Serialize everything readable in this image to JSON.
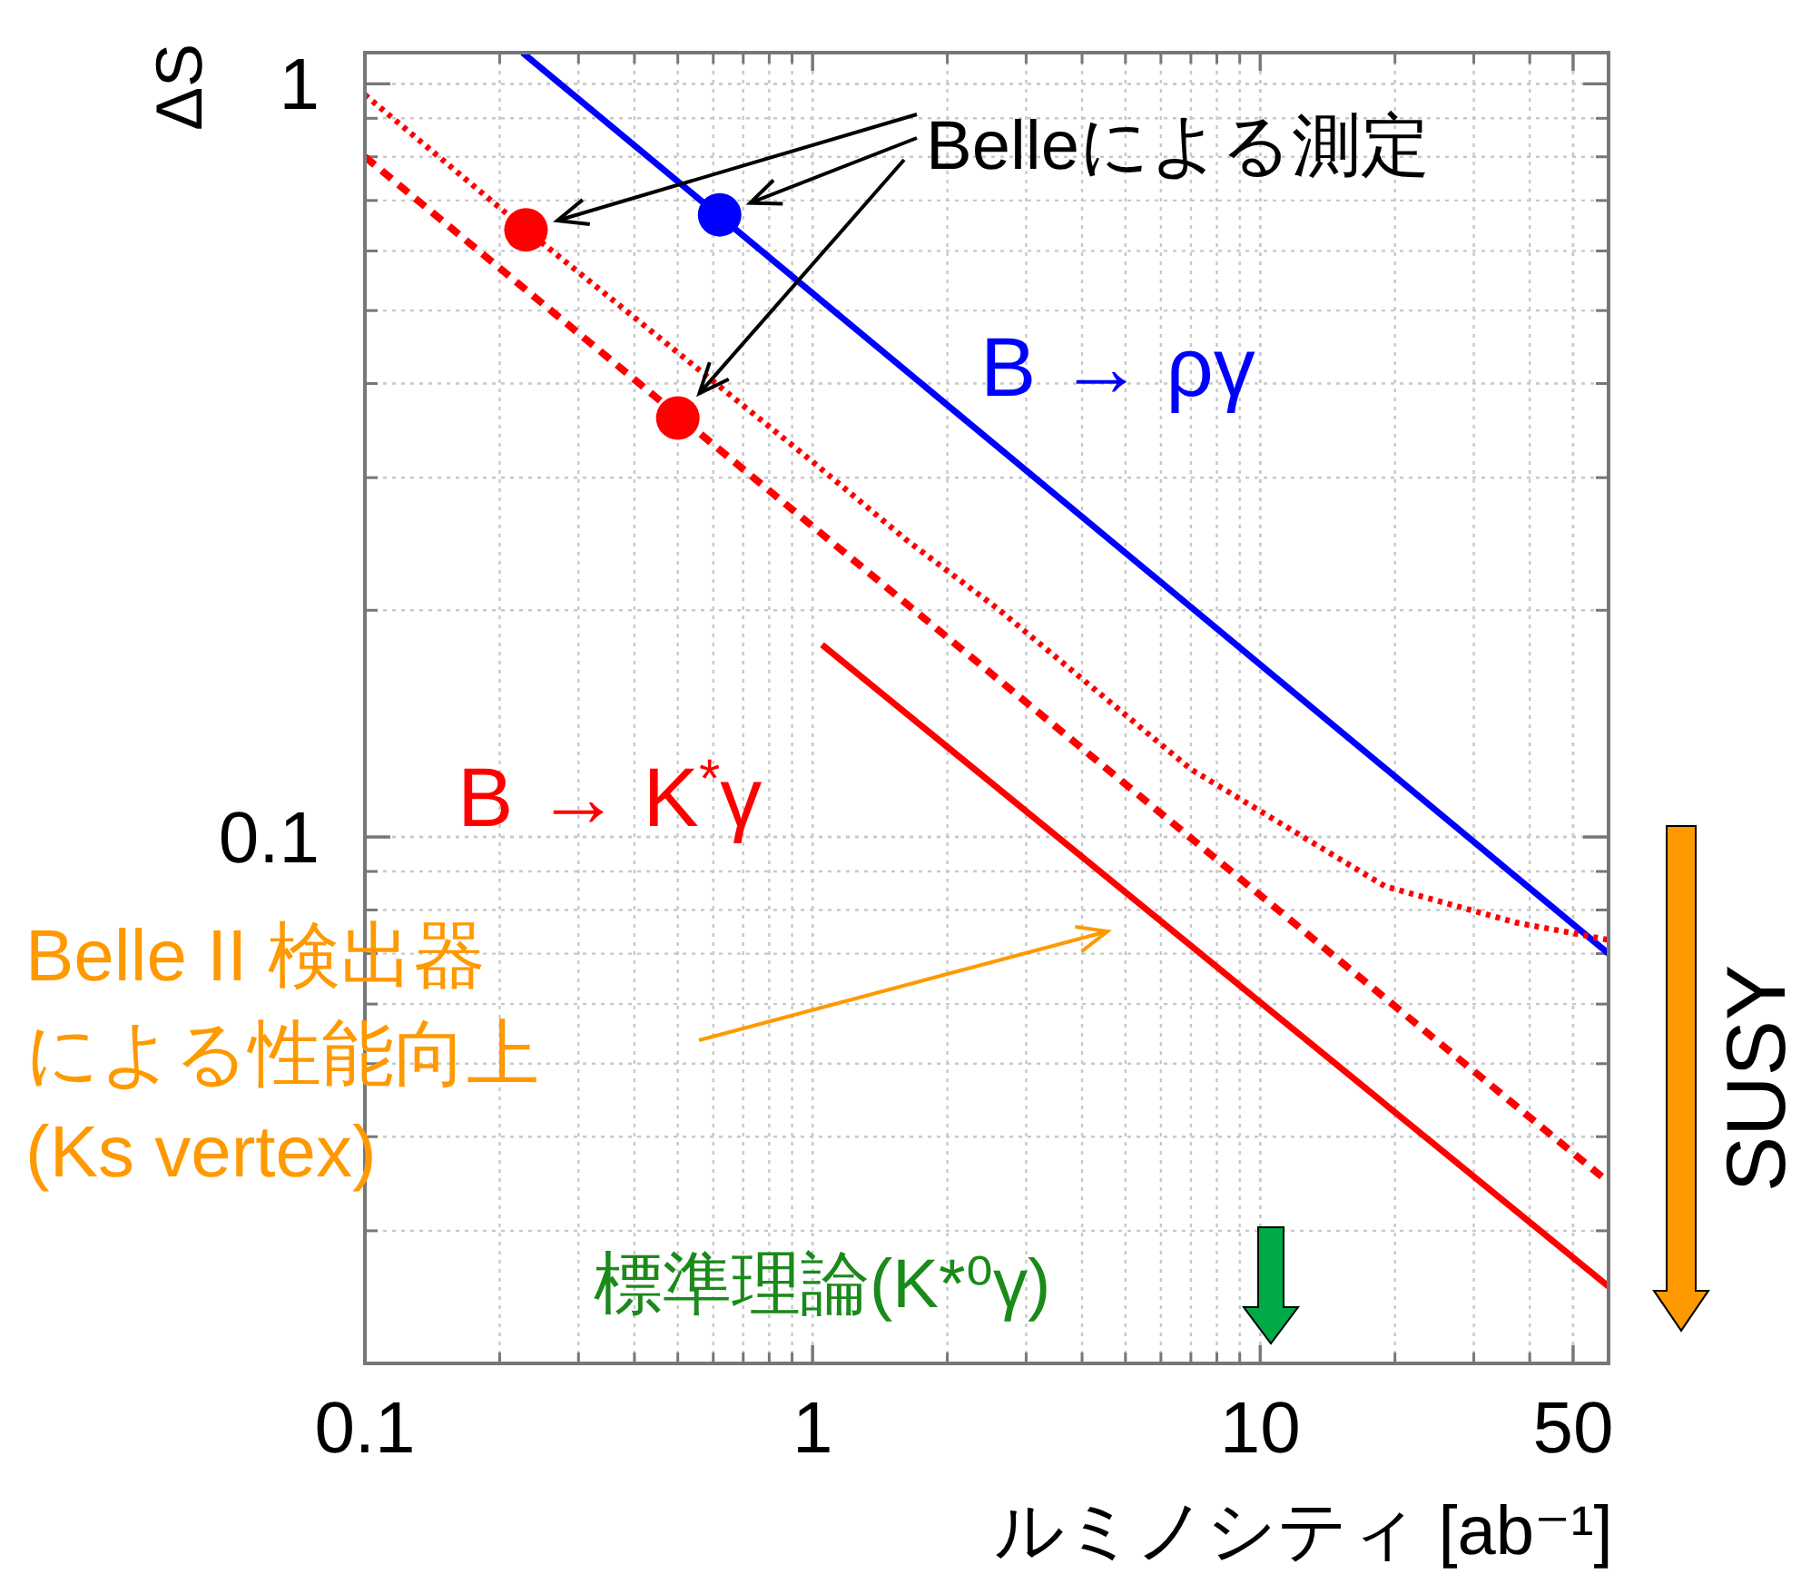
{
  "chart_data": {
    "type": "line",
    "xlabel": "ルミノシティ [ab⁻¹]",
    "ylabel": "ΔS",
    "log": "xy",
    "xlim": [
      0.1,
      60
    ],
    "ylim": [
      0.02,
      1.1
    ],
    "xticks": [
      0.1,
      1,
      10,
      50
    ],
    "yticks": [
      0.1,
      1
    ],
    "grid": true,
    "series": [
      {
        "name": "B → ργ",
        "color": "#0000ff",
        "line_style": "solid",
        "x": [
          0.225,
          60
        ],
        "values": [
          1.1,
          0.07
        ]
      },
      {
        "color": "#ff0000",
        "line_style": "dotted",
        "x": [
          0.1,
          0.229,
          1,
          1.62,
          2.59,
          7.0,
          19.0,
          37.2,
          60
        ],
        "values": [
          0.967,
          0.64,
          0.315,
          0.248,
          0.201,
          0.123,
          0.086,
          0.077,
          0.073
        ]
      },
      {
        "color": "#ff0000",
        "line_style": "dashed",
        "x": [
          0.1,
          0.5,
          60
        ],
        "values": [
          0.8,
          0.363,
          0.0348
        ]
      },
      {
        "name": "B → K$^{*}$γ",
        "color": "#ff0000",
        "line_style": "solid",
        "x": [
          1.05,
          60
        ],
        "values": [
          0.18,
          0.0253
        ]
      },
      {
        "type": "scatter",
        "marker": "circle",
        "x": [
          0.229,
          0.62,
          0.5
        ],
        "values": [
          0.64,
          0.67,
          0.36
        ],
        "colors": [
          "#ff0000",
          "#0000ff",
          "#ff0000"
        ]
      }
    ],
    "annotations": [
      "Belleによる測定",
      "Belle II 検出器",
      "による性能向上",
      "(Ks vertex)",
      "標準理論(K*⁰γ)",
      "SUSY"
    ]
  }
}
